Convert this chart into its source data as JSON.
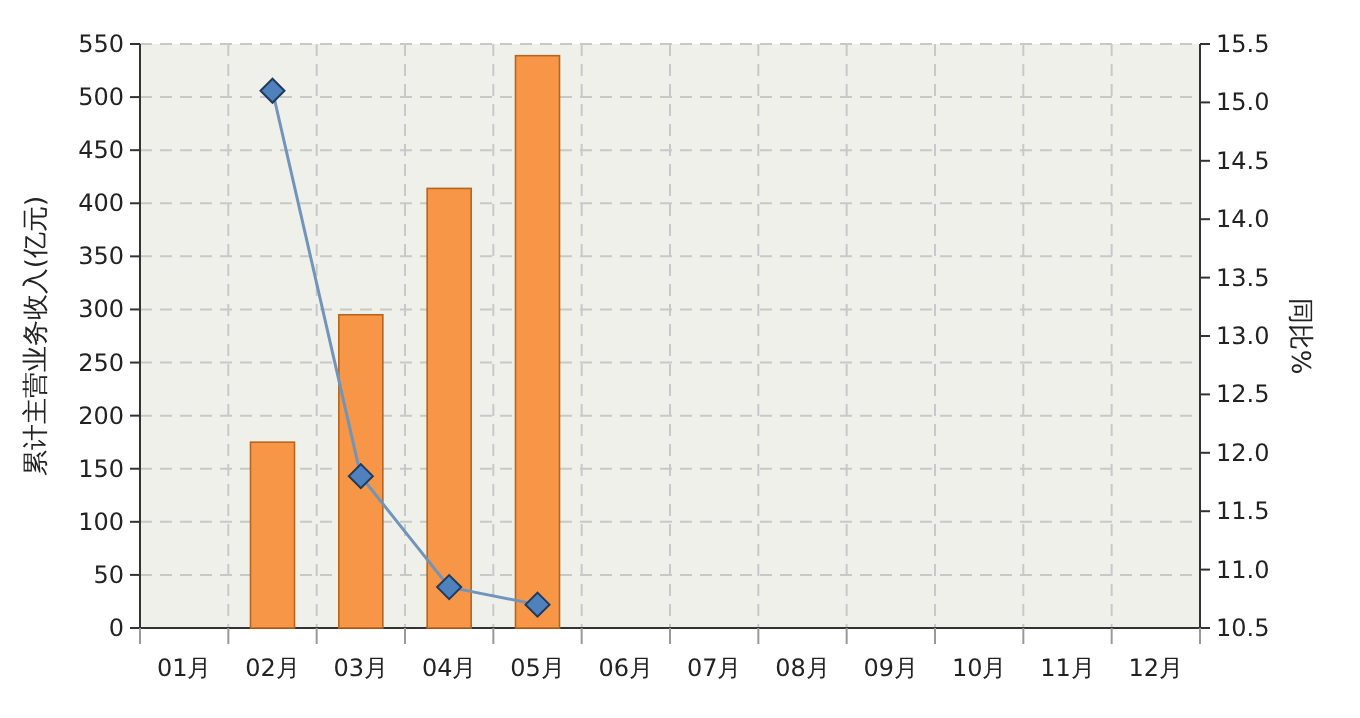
{
  "chart_data": {
    "type": "bar",
    "ylabel": "累计主营业务收入(亿元)",
    "y2label": "同比%",
    "categories": [
      "01月",
      "02月",
      "03月",
      "04月",
      "05月",
      "06月",
      "07月",
      "08月",
      "09月",
      "10月",
      "11月",
      "12月"
    ],
    "series": [
      {
        "color": "#f79646",
        "values": [
          null,
          175,
          295,
          414,
          539,
          null,
          null,
          null,
          null,
          null,
          null,
          null
        ]
      },
      {
        "type": "line",
        "axis": "y2",
        "color": "#7194bb",
        "values": [
          null,
          15.1,
          11.8,
          10.85,
          10.7,
          null,
          null,
          null,
          null,
          null,
          null,
          null
        ]
      }
    ],
    "ylim": [
      0,
      550
    ],
    "yticks": [
      0,
      50,
      100,
      150,
      200,
      250,
      300,
      350,
      400,
      450,
      500,
      550
    ],
    "y2lim": [
      10.5,
      15.5
    ],
    "y2ticks": [
      {
        "value": 10.5,
        "label": "10.5"
      },
      {
        "value": 11,
        "label": "11.0"
      },
      {
        "value": 11.5,
        "label": "11.5"
      },
      {
        "value": 12,
        "label": "12.0"
      },
      {
        "value": 12.5,
        "label": "12.5"
      },
      {
        "value": 13,
        "label": "13.0"
      },
      {
        "value": 13.5,
        "label": "13.5"
      },
      {
        "value": 14,
        "label": "14.0"
      },
      {
        "value": 14.5,
        "label": "14.5"
      },
      {
        "value": 15,
        "label": "15.0"
      },
      {
        "value": 15.5,
        "label": "15.5"
      }
    ],
    "grid": true,
    "marker": "diamond"
  }
}
